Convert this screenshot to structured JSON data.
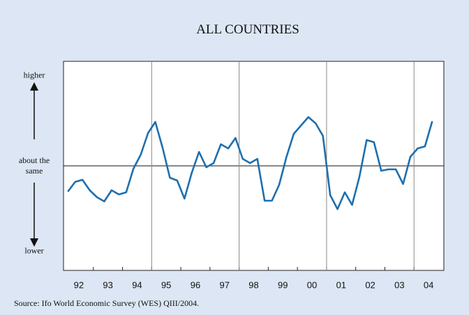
{
  "chart_data": {
    "type": "line",
    "title": "ALL COUNTRIES",
    "source": "Source: Ifo World Economic Survey (WES) QIII/2004.",
    "categories": [
      "92",
      null,
      null,
      null,
      "93",
      null,
      null,
      null,
      "94",
      null,
      null,
      null,
      "95",
      null,
      null,
      null,
      "96",
      null,
      null,
      null,
      "97",
      null,
      null,
      null,
      "98",
      null,
      null,
      null,
      "99",
      null,
      null,
      null,
      "00",
      null,
      null,
      null,
      "01",
      null,
      null,
      null,
      "02",
      null,
      null,
      null,
      "03",
      null,
      null,
      null,
      "04",
      null,
      null
    ],
    "series": [
      {
        "color": "#1f6fad",
        "values": [
          -0.37,
          -0.23,
          -0.2,
          -0.35,
          -0.45,
          -0.51,
          -0.35,
          -0.41,
          -0.38,
          -0.04,
          0.16,
          0.47,
          0.63,
          0.26,
          -0.17,
          -0.21,
          -0.47,
          -0.1,
          0.2,
          -0.02,
          0.04,
          0.31,
          0.25,
          0.4,
          0.1,
          0.04,
          0.1,
          -0.5,
          -0.5,
          -0.27,
          0.13,
          0.46,
          0.58,
          0.7,
          0.61,
          0.43,
          -0.42,
          -0.62,
          -0.38,
          -0.56,
          -0.16,
          0.37,
          0.34,
          -0.07,
          -0.05,
          -0.05,
          -0.26,
          0.13,
          0.25,
          0.28,
          0.64
        ]
      }
    ],
    "ylim": [
      -1.5,
      1.5
    ],
    "yticks": [
      {
        "value": 1.3,
        "label": "higher"
      },
      {
        "value": 0,
        "label": "about the same"
      },
      {
        "value": -1.22,
        "label": "lower"
      }
    ],
    "baseline": 0
  }
}
